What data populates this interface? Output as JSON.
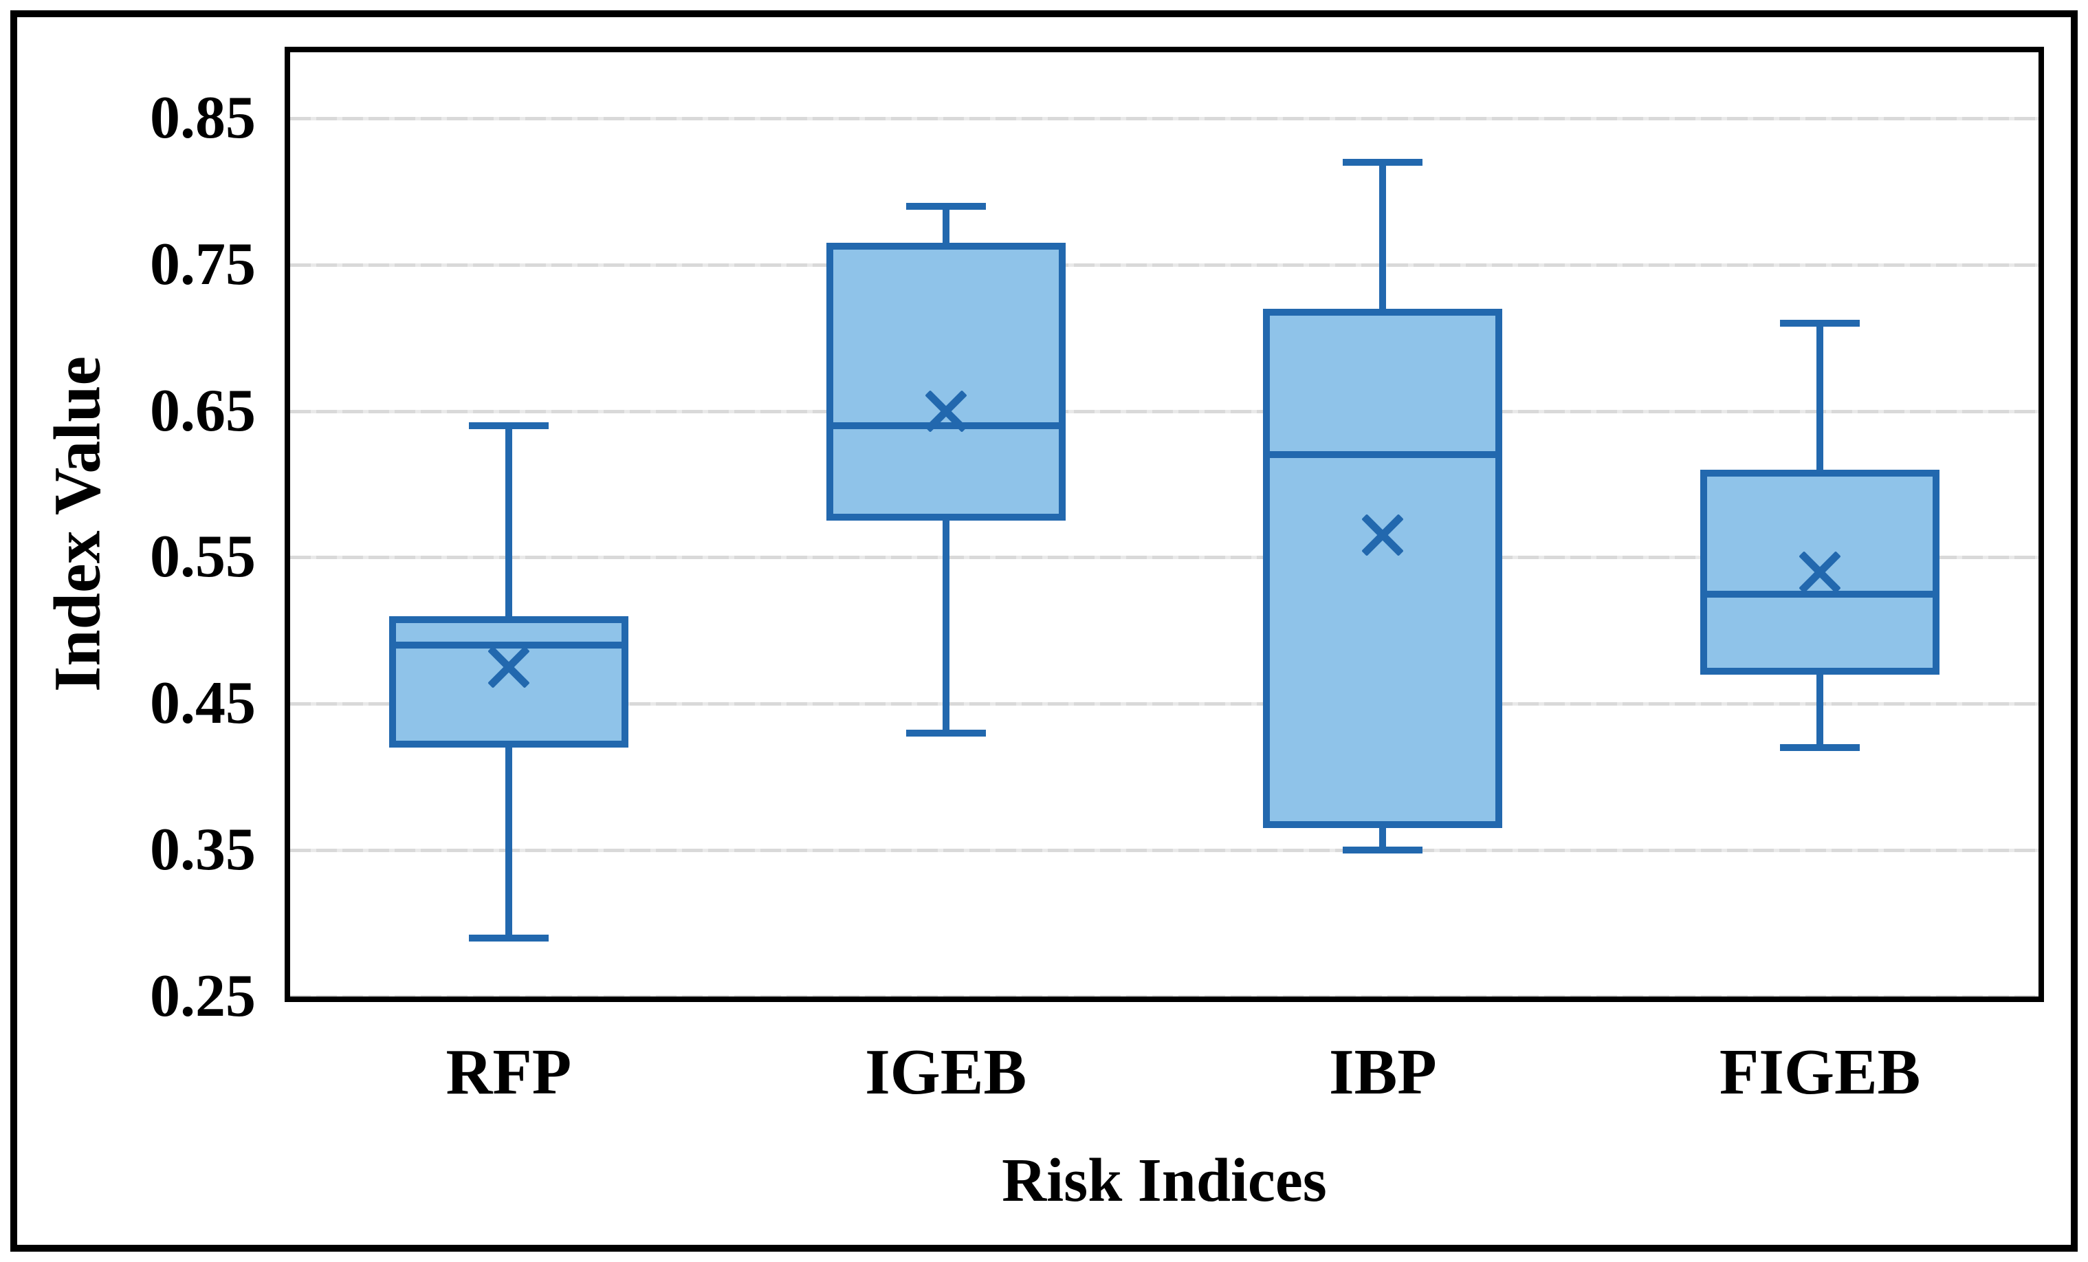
{
  "figure": {
    "y_axis_title": "Index Value",
    "x_axis_title": "Risk Indices"
  },
  "chart_data": {
    "type": "box",
    "title": "",
    "xlabel": "Risk Indices",
    "ylabel": "Index Value",
    "categories": [
      "RFP",
      "IGEB",
      "IBP",
      "FIGEB"
    ],
    "ylim": [
      0.25,
      0.895
    ],
    "y_ticks": [
      0.85,
      0.75,
      0.65,
      0.55,
      0.45,
      0.35,
      0.25
    ],
    "grid": "horizontal major gridlines every 0.1, light gray dashed",
    "legend": "none",
    "series": [
      {
        "name": "RFP",
        "whisker_low": 0.29,
        "q1": 0.42,
        "median": 0.49,
        "mean": 0.475,
        "q3": 0.51,
        "whisker_high": 0.64
      },
      {
        "name": "IGEB",
        "whisker_low": 0.43,
        "q1": 0.575,
        "median": 0.64,
        "mean": 0.65,
        "q3": 0.765,
        "whisker_high": 0.79
      },
      {
        "name": "IBP",
        "whisker_low": 0.35,
        "q1": 0.365,
        "median": 0.62,
        "mean": 0.565,
        "q3": 0.72,
        "whisker_high": 0.82
      },
      {
        "name": "FIGEB",
        "whisker_low": 0.42,
        "q1": 0.47,
        "median": 0.525,
        "mean": 0.54,
        "q3": 0.61,
        "whisker_high": 0.71
      }
    ],
    "colors": {
      "box_fill": "#8FC3E9",
      "box_stroke": "#2268AE",
      "gridline": "#D9D9D9",
      "axis_border": "#000000",
      "text": "#000000"
    }
  }
}
